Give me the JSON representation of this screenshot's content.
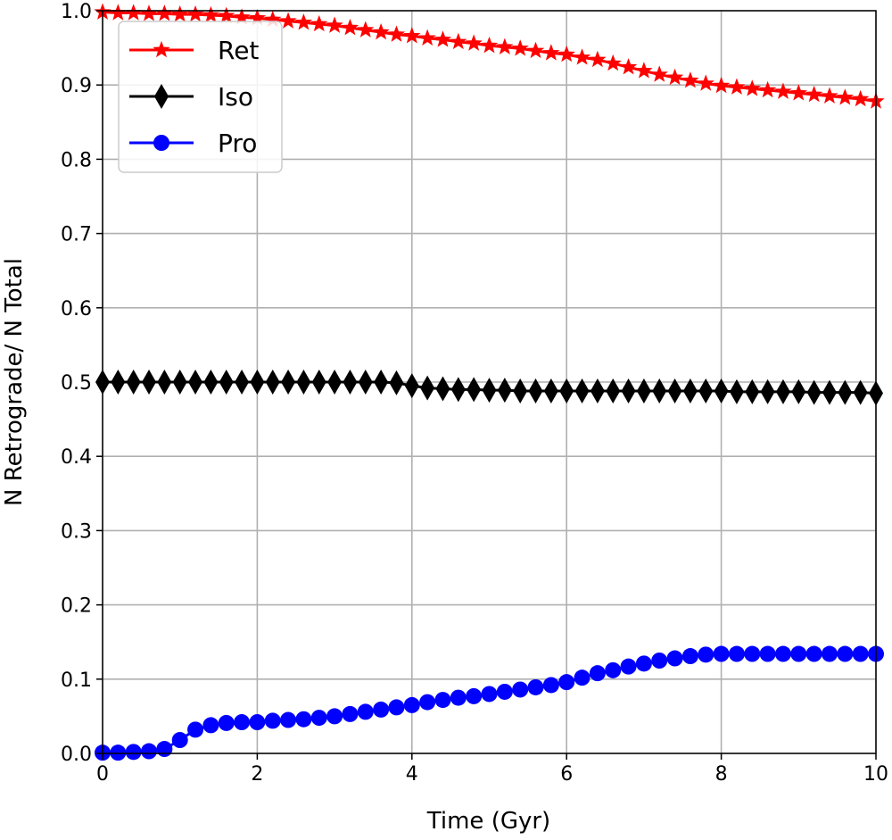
{
  "chart_data": {
    "type": "line",
    "title": "",
    "xlabel": "Time (Gyr)",
    "ylabel": "N Retrograde/ N Total",
    "xlim": [
      0,
      10
    ],
    "ylim": [
      0.0,
      1.0
    ],
    "xticks": [
      "0",
      "2",
      "4",
      "6",
      "8",
      "10"
    ],
    "yticks": [
      "0.0",
      "0.1",
      "0.2",
      "0.3",
      "0.4",
      "0.5",
      "0.6",
      "0.7",
      "0.8",
      "0.9",
      "1.0"
    ],
    "grid": true,
    "legend_position": "top-left",
    "x": [
      0.0,
      0.2,
      0.4,
      0.6,
      0.8,
      1.0,
      1.2,
      1.4,
      1.6,
      1.8,
      2.0,
      2.2,
      2.4,
      2.6,
      2.8,
      3.0,
      3.2,
      3.4,
      3.6,
      3.8,
      4.0,
      4.2,
      4.4,
      4.6,
      4.8,
      5.0,
      5.2,
      5.4,
      5.6,
      5.8,
      6.0,
      6.2,
      6.4,
      6.6,
      6.8,
      7.0,
      7.2,
      7.4,
      7.6,
      7.8,
      8.0,
      8.2,
      8.4,
      8.6,
      8.8,
      9.0,
      9.2,
      9.4,
      9.6,
      9.8,
      10.0
    ],
    "series": [
      {
        "name": "Ret",
        "color": "#ff0000",
        "marker": "star",
        "values": [
          0.998,
          0.997,
          0.997,
          0.996,
          0.996,
          0.995,
          0.995,
          0.994,
          0.993,
          0.991,
          0.99,
          0.988,
          0.986,
          0.984,
          0.982,
          0.98,
          0.977,
          0.974,
          0.971,
          0.968,
          0.966,
          0.963,
          0.961,
          0.958,
          0.956,
          0.953,
          0.951,
          0.949,
          0.946,
          0.943,
          0.941,
          0.937,
          0.934,
          0.929,
          0.924,
          0.919,
          0.914,
          0.91,
          0.906,
          0.902,
          0.899,
          0.897,
          0.895,
          0.893,
          0.891,
          0.889,
          0.887,
          0.885,
          0.883,
          0.881,
          0.878
        ]
      },
      {
        "name": "Iso",
        "color": "#000000",
        "marker": "diamond",
        "values": [
          0.5,
          0.5,
          0.5,
          0.5,
          0.5,
          0.5,
          0.5,
          0.5,
          0.5,
          0.5,
          0.5,
          0.5,
          0.5,
          0.5,
          0.5,
          0.5,
          0.5,
          0.5,
          0.5,
          0.499,
          0.495,
          0.492,
          0.491,
          0.49,
          0.49,
          0.489,
          0.489,
          0.488,
          0.488,
          0.488,
          0.488,
          0.488,
          0.488,
          0.488,
          0.488,
          0.488,
          0.488,
          0.488,
          0.488,
          0.488,
          0.488,
          0.487,
          0.487,
          0.487,
          0.487,
          0.487,
          0.486,
          0.486,
          0.486,
          0.486,
          0.485
        ]
      },
      {
        "name": "Pro",
        "color": "#0000ff",
        "marker": "circle",
        "values": [
          0.001,
          0.001,
          0.002,
          0.003,
          0.006,
          0.018,
          0.032,
          0.038,
          0.041,
          0.042,
          0.042,
          0.044,
          0.045,
          0.046,
          0.048,
          0.05,
          0.053,
          0.056,
          0.059,
          0.062,
          0.065,
          0.069,
          0.072,
          0.075,
          0.077,
          0.08,
          0.083,
          0.086,
          0.089,
          0.092,
          0.096,
          0.102,
          0.108,
          0.112,
          0.117,
          0.121,
          0.125,
          0.128,
          0.131,
          0.133,
          0.134,
          0.134,
          0.134,
          0.134,
          0.134,
          0.134,
          0.134,
          0.134,
          0.134,
          0.134,
          0.134
        ]
      }
    ]
  }
}
